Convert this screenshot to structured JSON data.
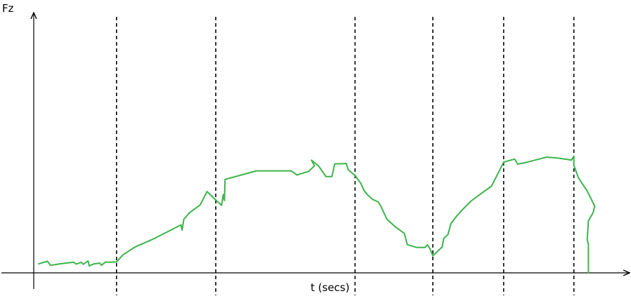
{
  "chart_data": {
    "type": "line",
    "title": "",
    "xlabel": "t (secs)",
    "ylabel": "Fz",
    "xlim": [
      0,
      100
    ],
    "ylim": [
      0,
      100
    ],
    "grid": false,
    "legend": "none",
    "tick_labels": false,
    "phase_boundaries_x": [
      13.9,
      31.0,
      55.0,
      68.4,
      80.6,
      92.7
    ],
    "series": [
      {
        "color": "#3cb44b",
        "points": [
          [
            0.5,
            4.5
          ],
          [
            2.0,
            5.8
          ],
          [
            2.5,
            3.8
          ],
          [
            4.5,
            4.7
          ],
          [
            6.5,
            5.3
          ],
          [
            7.0,
            4.4
          ],
          [
            7.8,
            5.3
          ],
          [
            8.2,
            4.3
          ],
          [
            9.0,
            6.0
          ],
          [
            9.2,
            3.5
          ],
          [
            10.0,
            4.5
          ],
          [
            11.0,
            4.9
          ],
          [
            11.3,
            3.8
          ],
          [
            12.0,
            5.4
          ],
          [
            13.0,
            5.4
          ],
          [
            13.9,
            5.5
          ],
          [
            15.0,
            9.0
          ],
          [
            17.0,
            12.8
          ],
          [
            20.0,
            16.7
          ],
          [
            23.0,
            21.1
          ],
          [
            25.0,
            24.1
          ],
          [
            25.2,
            21.4
          ],
          [
            25.5,
            26.9
          ],
          [
            26.5,
            30.2
          ],
          [
            28.3,
            34.1
          ],
          [
            29.5,
            40.8
          ],
          [
            31.0,
            36.6
          ],
          [
            32.0,
            33.9
          ],
          [
            32.3,
            39.3
          ],
          [
            32.5,
            36.3
          ],
          [
            32.6,
            46.9
          ],
          [
            35.0,
            48.8
          ],
          [
            38.0,
            51.2
          ],
          [
            44.0,
            51.2
          ],
          [
            45.0,
            49.1
          ],
          [
            45.5,
            49.6
          ],
          [
            47.0,
            50.9
          ],
          [
            48.0,
            53.7
          ],
          [
            47.5,
            56.6
          ],
          [
            48.7,
            53.7
          ],
          [
            50.0,
            48.3
          ],
          [
            51.0,
            48.3
          ],
          [
            51.5,
            54.7
          ],
          [
            53.5,
            54.9
          ],
          [
            53.8,
            51.8
          ],
          [
            54.5,
            50.1
          ],
          [
            55.0,
            48.8
          ],
          [
            56.0,
            44.9
          ],
          [
            56.5,
            41.6
          ],
          [
            57.0,
            39.6
          ],
          [
            58.0,
            36.9
          ],
          [
            59.0,
            35.6
          ],
          [
            59.5,
            33.1
          ],
          [
            60.5,
            26.9
          ],
          [
            62.0,
            23.0
          ],
          [
            63.5,
            19.8
          ],
          [
            64.0,
            14.2
          ],
          [
            65.5,
            12.8
          ],
          [
            67.0,
            12.7
          ],
          [
            67.5,
            14.1
          ],
          [
            68.0,
            11.5
          ],
          [
            68.4,
            8.6
          ],
          [
            70.0,
            13.0
          ],
          [
            70.3,
            17.4
          ],
          [
            71.0,
            19.2
          ],
          [
            71.5,
            24.6
          ],
          [
            72.5,
            28.5
          ],
          [
            73.5,
            31.7
          ],
          [
            75.0,
            36.1
          ],
          [
            77.0,
            40.4
          ],
          [
            78.5,
            43.5
          ],
          [
            79.5,
            49.2
          ],
          [
            80.6,
            55.6
          ],
          [
            82.5,
            57.1
          ],
          [
            83.0,
            54.6
          ],
          [
            84.0,
            55.1
          ],
          [
            86.0,
            56.6
          ],
          [
            88.0,
            58.1
          ],
          [
            90.0,
            57.6
          ],
          [
            92.3,
            56.6
          ],
          [
            92.7,
            58.6
          ],
          [
            92.7,
            53.9
          ],
          [
            93.5,
            47.6
          ],
          [
            95.0,
            41.1
          ],
          [
            96.3,
            33.4
          ],
          [
            96.0,
            30.2
          ],
          [
            95.2,
            26.1
          ],
          [
            95.0,
            16.7
          ],
          [
            95.2,
            14.5
          ],
          [
            95.2,
            0.0
          ]
        ]
      }
    ]
  }
}
